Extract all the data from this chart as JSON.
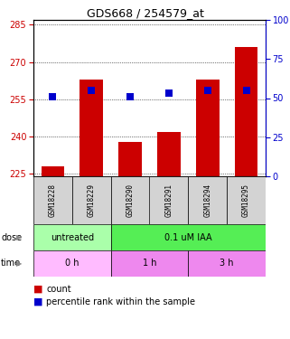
{
  "title": "GDS668 / 254579_at",
  "samples": [
    "GSM18228",
    "GSM18229",
    "GSM18290",
    "GSM18291",
    "GSM18294",
    "GSM18295"
  ],
  "counts": [
    228,
    263,
    238,
    242,
    263,
    276
  ],
  "percentiles": [
    51,
    55,
    51,
    53,
    55,
    55
  ],
  "ylim_left": [
    224,
    287
  ],
  "ylim_right": [
    0,
    100
  ],
  "yticks_left": [
    225,
    240,
    255,
    270,
    285
  ],
  "yticks_right": [
    0,
    25,
    50,
    75,
    100
  ],
  "bar_color": "#cc0000",
  "dot_color": "#0000cc",
  "dose_groups": [
    {
      "label": "untreated",
      "cols": [
        0,
        1
      ],
      "color": "#aaffaa"
    },
    {
      "label": "0.1 uM IAA",
      "cols": [
        2,
        3,
        4,
        5
      ],
      "color": "#55ee55"
    }
  ],
  "time_groups": [
    {
      "label": "0 h",
      "cols": [
        0,
        1
      ],
      "color": "#ffbbff"
    },
    {
      "label": "1 h",
      "cols": [
        2,
        3
      ],
      "color": "#ee88ee"
    },
    {
      "label": "3 h",
      "cols": [
        4,
        5
      ],
      "color": "#ee88ee"
    }
  ],
  "legend_count_color": "#cc0000",
  "legend_pct_color": "#0000cc",
  "grid_color": "#000000",
  "tick_color_left": "#cc0000",
  "tick_color_right": "#0000cc",
  "bar_width": 0.6,
  "dot_size": 40,
  "sample_cell_color": "#d3d3d3"
}
